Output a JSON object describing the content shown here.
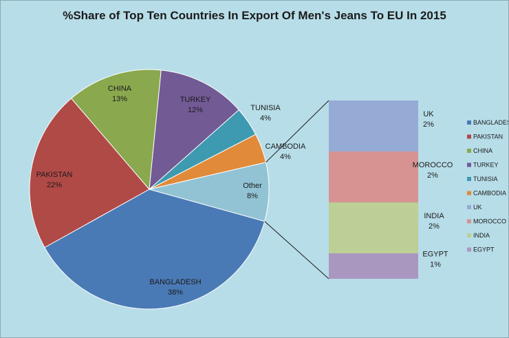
{
  "chart_data": {
    "type": "pie",
    "title": "%Share of Top Ten Countries In Export Of Men's Jeans To EU In 2015",
    "pie": {
      "slices": [
        {
          "key": "bangladesh",
          "name": "BANGLADESH",
          "value": 38,
          "pct_label": "38%",
          "color": "#4a7ab5"
        },
        {
          "key": "pakistan",
          "name": "PAKISTAN",
          "value": 22,
          "pct_label": "22%",
          "color": "#b04a47"
        },
        {
          "key": "china",
          "name": "CHINA",
          "value": 13,
          "pct_label": "13%",
          "color": "#8aa84e"
        },
        {
          "key": "turkey",
          "name": "TURKEY",
          "value": 12,
          "pct_label": "12%",
          "color": "#725a95"
        },
        {
          "key": "tunisia",
          "name": "TUNISIA",
          "value": 4,
          "pct_label": "4%",
          "color": "#3d9ab0"
        },
        {
          "key": "cambodia",
          "name": "CAMBODIA",
          "value": 4,
          "pct_label": "4%",
          "color": "#e08a3a"
        },
        {
          "key": "other",
          "name": "Other",
          "value": 8,
          "pct_label": "8%",
          "color": "#92c3d4"
        }
      ]
    },
    "breakdown": {
      "type": "stacked-bar",
      "segments": [
        {
          "key": "uk",
          "name": "UK",
          "value": 2,
          "pct_label": "2%",
          "color": "#95abd5"
        },
        {
          "key": "morocco",
          "name": "MOROCCO",
          "value": 2,
          "pct_label": "2%",
          "color": "#d69391"
        },
        {
          "key": "india",
          "name": "INDIA",
          "value": 2,
          "pct_label": "2%",
          "color": "#bccf96"
        },
        {
          "key": "egypt",
          "name": "EGYPT",
          "value": 1,
          "pct_label": "1%",
          "color": "#a997c0"
        }
      ]
    },
    "legend": {
      "placement": "right",
      "entries": [
        {
          "label": "BANGLADES",
          "color": "#4a7ab5"
        },
        {
          "label": "PAKISTAN",
          "color": "#b04a47"
        },
        {
          "label": "CHINA",
          "color": "#8aa84e"
        },
        {
          "label": "TURKEY",
          "color": "#725a95"
        },
        {
          "label": "TUNISIA",
          "color": "#3d9ab0"
        },
        {
          "label": "CAMBODIA",
          "color": "#e08a3a"
        },
        {
          "label": "UK",
          "color": "#95abd5"
        },
        {
          "label": "MOROCCO",
          "color": "#d69391"
        },
        {
          "label": "INDIA",
          "color": "#bccf96"
        },
        {
          "label": "EGYPT",
          "color": "#a997c0"
        }
      ]
    },
    "background_color": "#b7dde8"
  }
}
